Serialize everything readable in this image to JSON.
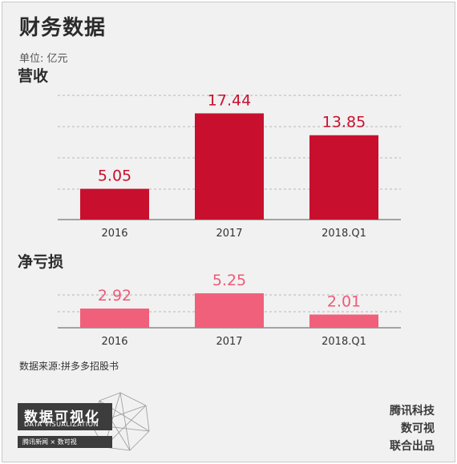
{
  "header": {
    "title": "财务数据",
    "unit": "单位: 亿元"
  },
  "colors": {
    "revenue_bar": "#c8102e",
    "revenue_label": "#c8102e",
    "loss_bar": "#f0607b",
    "loss_label": "#ee5a76",
    "grid": "#b8b8b8"
  },
  "chart_data": [
    {
      "type": "bar",
      "title": "营收",
      "categories": [
        "2016",
        "2017",
        "2018.Q1"
      ],
      "values": [
        5.05,
        17.44,
        13.85
      ],
      "data_labels": [
        "5.05",
        "17.44",
        "13.85"
      ],
      "grid": true
    },
    {
      "type": "bar",
      "title": "净亏损",
      "categories": [
        "2016",
        "2017",
        "2018.Q1"
      ],
      "values": [
        2.92,
        5.25,
        2.01
      ],
      "data_labels": [
        "2.92",
        "5.25",
        "2.01"
      ],
      "grid": true
    }
  ],
  "footer": {
    "source": "数据来源:拼多多招股书",
    "logo_cn": "数据可视化",
    "logo_en": "DATA VISUALIZATION",
    "logo_sub": "腾讯新闻 × 数可视",
    "credits": [
      "腾讯科技",
      "数可视",
      "联合出品"
    ]
  }
}
